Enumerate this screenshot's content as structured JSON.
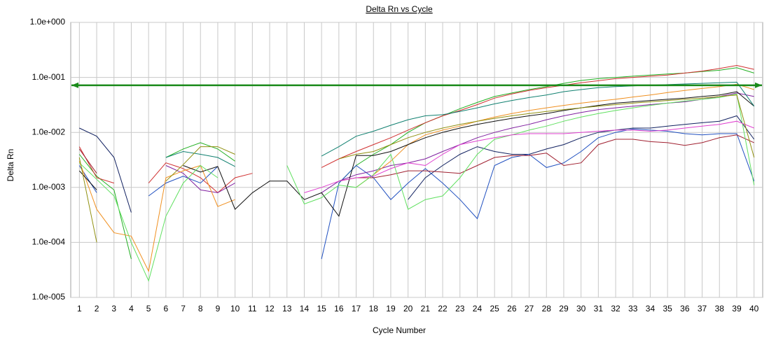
{
  "chart_data": {
    "type": "line",
    "title": "Delta Rn vs Cycle",
    "xlabel": "Cycle Number",
    "ylabel": "Delta Rn",
    "log_y": true,
    "grid": true,
    "threshold": 0.072,
    "threshold_color": "#1a8a1a",
    "x": [
      1,
      2,
      3,
      4,
      5,
      6,
      7,
      8,
      9,
      10,
      11,
      12,
      13,
      14,
      15,
      16,
      17,
      18,
      19,
      20,
      21,
      22,
      23,
      24,
      25,
      26,
      27,
      28,
      29,
      30,
      31,
      32,
      33,
      34,
      35,
      36,
      37,
      38,
      39,
      40
    ],
    "xlim": [
      0.5,
      40.5
    ],
    "xticks": [
      1,
      2,
      3,
      4,
      5,
      6,
      7,
      8,
      9,
      10,
      11,
      12,
      13,
      14,
      15,
      16,
      17,
      18,
      19,
      20,
      21,
      22,
      23,
      24,
      25,
      26,
      27,
      28,
      29,
      30,
      31,
      32,
      33,
      34,
      35,
      36,
      37,
      38,
      39,
      40
    ],
    "ylim": [
      1e-05,
      1
    ],
    "yticks": [
      {
        "value": 1e-05,
        "label": "1.0e-005"
      },
      {
        "value": 0.0001,
        "label": "1.0e-004"
      },
      {
        "value": 0.001,
        "label": "1.0e-003"
      },
      {
        "value": 0.01,
        "label": "1.0e-002"
      },
      {
        "value": 0.1,
        "label": "1.0e-001"
      },
      {
        "value": 1,
        "label": "1.0e+000"
      }
    ],
    "series": [
      {
        "color": "#22b022",
        "values": [
          0.004,
          0.0016,
          0.0009,
          5e-05,
          null,
          0.0035,
          0.005,
          0.0065,
          0.005,
          0.003,
          null,
          null,
          null,
          null,
          null,
          0.0012,
          0.0025,
          0.004,
          0.006,
          0.01,
          0.015,
          0.02,
          0.027,
          0.035,
          0.045,
          0.052,
          0.06,
          0.068,
          0.078,
          0.088,
          0.095,
          0.1,
          0.105,
          0.11,
          0.115,
          0.12,
          0.128,
          0.135,
          0.15,
          0.12
        ]
      },
      {
        "color": "#d03030",
        "values": [
          0.0055,
          0.0015,
          0.0012,
          null,
          0.0012,
          0.0028,
          0.0022,
          0.0015,
          0.0008,
          0.0015,
          0.0018,
          null,
          null,
          null,
          0.0023,
          0.0033,
          0.0045,
          0.006,
          0.008,
          0.011,
          0.015,
          0.02,
          0.025,
          0.032,
          0.042,
          0.05,
          0.058,
          0.065,
          0.072,
          0.08,
          0.087,
          0.095,
          0.1,
          0.105,
          0.11,
          0.12,
          0.13,
          0.145,
          0.165,
          0.14
        ]
      },
      {
        "color": "#102060",
        "values": [
          0.012,
          0.0085,
          0.0035,
          0.00035,
          null,
          null,
          null,
          null,
          null,
          null,
          null,
          null,
          null,
          null,
          null,
          null,
          null,
          null,
          null,
          0.0006,
          0.0015,
          0.0025,
          0.004,
          0.0055,
          0.0045,
          0.004,
          0.004,
          0.005,
          0.006,
          0.008,
          0.01,
          0.011,
          0.012,
          0.012,
          0.013,
          0.014,
          0.015,
          0.016,
          0.02,
          0.0075
        ]
      },
      {
        "color": "#2050c0",
        "values": [
          0.0025,
          0.0008,
          null,
          null,
          0.0007,
          0.0012,
          0.0016,
          0.0012,
          0.0024,
          null,
          null,
          null,
          null,
          null,
          5e-05,
          0.0012,
          0.0025,
          0.0015,
          0.0006,
          0.0012,
          0.0022,
          0.0012,
          0.0006,
          0.00027,
          0.0025,
          0.0035,
          0.004,
          0.0023,
          0.0028,
          0.0045,
          0.008,
          0.01,
          0.0115,
          0.011,
          0.0105,
          0.0095,
          0.009,
          0.0095,
          0.0095,
          0.0013
        ]
      },
      {
        "color": "#a02030",
        "values": [
          0.005,
          0.0018,
          null,
          null,
          null,
          null,
          null,
          null,
          null,
          null,
          null,
          null,
          null,
          null,
          null,
          0.0013,
          0.0015,
          0.0015,
          0.0017,
          0.002,
          0.002,
          0.0019,
          0.0018,
          0.0025,
          0.0035,
          0.0038,
          0.0038,
          0.0042,
          0.0025,
          0.0028,
          0.006,
          0.0075,
          0.0075,
          0.0068,
          0.0065,
          0.0058,
          0.0065,
          0.008,
          0.009,
          0.0065
        ]
      },
      {
        "color": "#8020a0",
        "values": [
          null,
          null,
          null,
          null,
          null,
          0.0025,
          0.0018,
          0.0009,
          0.0008,
          0.0012,
          null,
          null,
          null,
          null,
          0.0008,
          0.0013,
          0.0017,
          0.002,
          0.0025,
          0.0028,
          0.0033,
          0.0045,
          0.006,
          0.008,
          0.01,
          0.012,
          0.014,
          0.017,
          0.02,
          0.023,
          0.026,
          0.028,
          0.03,
          0.032,
          0.034,
          0.036,
          0.04,
          0.045,
          0.052,
          0.045
        ]
      },
      {
        "color": "#f09020",
        "values": [
          0.003,
          0.0004,
          0.00015,
          0.00013,
          3e-05,
          0.0015,
          0.002,
          0.0025,
          0.00045,
          0.0006,
          null,
          null,
          null,
          null,
          null,
          null,
          0.001,
          0.0017,
          0.003,
          0.006,
          0.009,
          0.011,
          0.013,
          0.016,
          0.019,
          0.022,
          0.025,
          0.028,
          0.031,
          0.034,
          0.037,
          0.04,
          0.044,
          0.048,
          0.053,
          0.058,
          0.063,
          0.068,
          0.075,
          0.06
        ]
      },
      {
        "color": "#101010",
        "values": [
          0.002,
          0.0009,
          null,
          null,
          null,
          null,
          0.0025,
          0.0019,
          0.0024,
          0.0004,
          0.0008,
          0.0013,
          0.0013,
          0.0006,
          0.0008,
          0.0003,
          0.0038,
          0.0038,
          0.0045,
          0.006,
          0.008,
          0.01,
          0.012,
          0.014,
          0.016,
          0.018,
          0.02,
          0.022,
          0.025,
          0.028,
          0.031,
          0.034,
          0.036,
          0.038,
          0.04,
          0.042,
          0.045,
          0.048,
          0.055,
          0.03
        ]
      },
      {
        "color": "#60e060",
        "values": [
          0.0028,
          0.0014,
          0.0007,
          0.0001,
          2e-05,
          0.0003,
          0.0012,
          0.0025,
          0.0015,
          null,
          null,
          null,
          0.0025,
          0.0005,
          0.00065,
          0.0011,
          0.001,
          0.0017,
          0.004,
          0.0004,
          0.0006,
          0.0007,
          0.0015,
          0.004,
          0.0075,
          0.009,
          0.011,
          0.013,
          0.016,
          0.019,
          0.022,
          0.025,
          0.028,
          0.031,
          0.034,
          0.037,
          0.04,
          0.043,
          0.05,
          0.0011
        ]
      },
      {
        "color": "#108070",
        "values": [
          null,
          null,
          null,
          null,
          null,
          0.0035,
          0.0045,
          0.004,
          0.0035,
          0.0024,
          null,
          null,
          null,
          null,
          0.0037,
          0.0055,
          0.0085,
          0.0105,
          0.0135,
          0.017,
          0.02,
          0.021,
          0.024,
          0.028,
          0.033,
          0.038,
          0.043,
          0.048,
          0.055,
          0.06,
          0.065,
          0.068,
          0.07,
          0.072,
          0.074,
          0.076,
          0.078,
          0.08,
          0.082,
          0.03
        ]
      },
      {
        "color": "#e040d0",
        "values": [
          null,
          null,
          null,
          null,
          null,
          null,
          null,
          null,
          null,
          null,
          null,
          null,
          null,
          0.0008,
          0.001,
          0.0013,
          0.0015,
          0.0016,
          0.0022,
          0.0028,
          0.0025,
          0.004,
          0.006,
          0.007,
          0.008,
          0.009,
          0.0095,
          0.0095,
          0.0095,
          0.01,
          0.0105,
          0.011,
          0.011,
          0.0105,
          0.011,
          0.012,
          0.013,
          0.014,
          0.016,
          0.012
        ]
      },
      {
        "color": "#909010",
        "values": [
          0.0035,
          0.0001,
          null,
          null,
          null,
          0.0013,
          0.0026,
          0.0055,
          0.0055,
          0.004,
          null,
          null,
          null,
          null,
          null,
          0.0033,
          0.004,
          0.0045,
          0.006,
          0.008,
          0.01,
          0.012,
          0.014,
          0.016,
          0.018,
          0.02,
          0.022,
          0.024,
          0.026,
          0.028,
          0.03,
          0.032,
          0.034,
          0.036,
          0.038,
          0.04,
          0.042,
          0.045,
          0.048,
          0.0035
        ]
      }
    ]
  }
}
